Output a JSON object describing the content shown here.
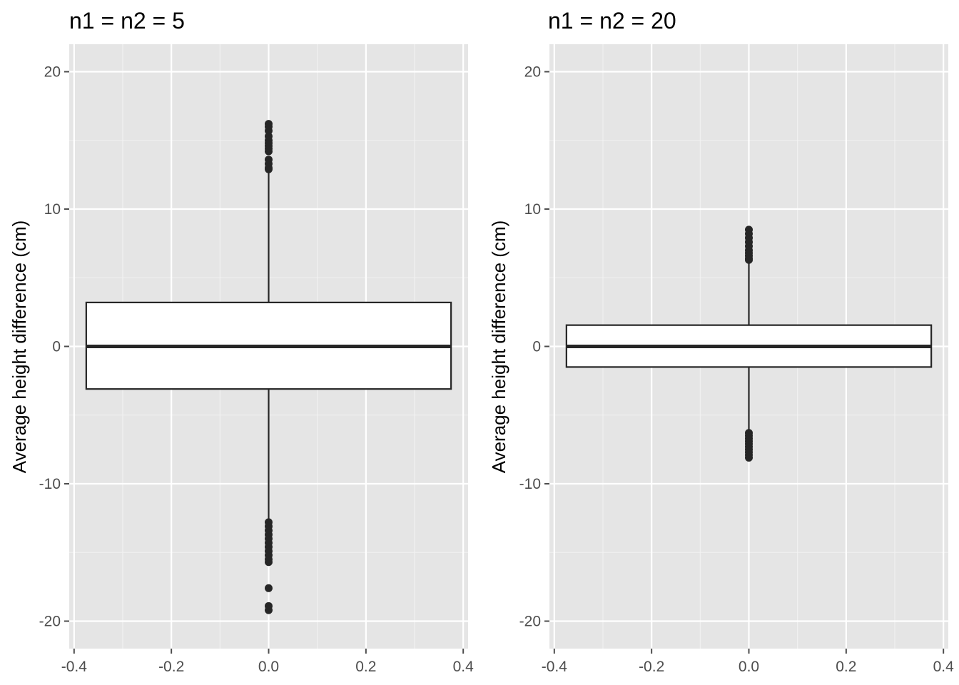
{
  "colors": {
    "panel_bg": "#E5E5E5",
    "grid_major": "#FFFFFF",
    "grid_minor": "#F2F2F2",
    "box_fill": "#FFFFFF",
    "ink": "#262626",
    "tick_label": "#4D4D4D"
  },
  "chart_data": [
    {
      "type": "boxplot",
      "title": "n1 = n2 = 5",
      "ylabel": "Average height difference (cm)",
      "xlabel": "",
      "xlim": [
        -0.41,
        0.41
      ],
      "ylim": [
        -22,
        22
      ],
      "x_ticks": [
        -0.4,
        -0.2,
        0.0,
        0.2,
        0.4
      ],
      "x_tick_labels": [
        "-0.4",
        "-0.2",
        "0.0",
        "0.2",
        "0.4"
      ],
      "y_ticks": [
        -20,
        -10,
        0,
        10,
        20
      ],
      "y_tick_labels": [
        "-20",
        "-10",
        "0",
        "10",
        "20"
      ],
      "grid": true,
      "box": {
        "x_center": 0.0,
        "half_width": 0.375,
        "q1": -3.1,
        "median": 0.0,
        "q3": 3.2,
        "whisker_low": -12.7,
        "whisker_high": 12.9
      },
      "outliers": [
        16.2,
        16.0,
        15.7,
        15.3,
        15.0,
        14.8,
        14.6,
        14.4,
        14.2,
        13.6,
        13.3,
        13.0,
        12.9,
        -12.8,
        -13.1,
        -13.4,
        -13.7,
        -14.0,
        -14.3,
        -14.6,
        -14.9,
        -15.2,
        -15.5,
        -15.7,
        -17.6,
        -18.9,
        -19.2
      ]
    },
    {
      "type": "boxplot",
      "title": "n1 = n2 = 20",
      "ylabel": "Average height difference (cm)",
      "xlabel": "",
      "xlim": [
        -0.41,
        0.41
      ],
      "ylim": [
        -22,
        22
      ],
      "x_ticks": [
        -0.4,
        -0.2,
        0.0,
        0.2,
        0.4
      ],
      "x_tick_labels": [
        "-0.4",
        "-0.2",
        "0.0",
        "0.2",
        "0.4"
      ],
      "y_ticks": [
        -20,
        -10,
        0,
        10,
        20
      ],
      "y_tick_labels": [
        "-20",
        "-10",
        "0",
        "10",
        "20"
      ],
      "grid": true,
      "box": {
        "x_center": 0.0,
        "half_width": 0.375,
        "q1": -1.5,
        "median": 0.0,
        "q3": 1.55,
        "whisker_low": -6.2,
        "whisker_high": 6.2
      },
      "outliers": [
        8.5,
        8.2,
        7.9,
        7.6,
        7.3,
        7.0,
        6.8,
        6.6,
        6.4,
        6.3,
        -6.3,
        -6.5,
        -6.7,
        -6.9,
        -7.1,
        -7.3,
        -7.5,
        -7.7,
        -7.9,
        -8.1
      ]
    }
  ]
}
